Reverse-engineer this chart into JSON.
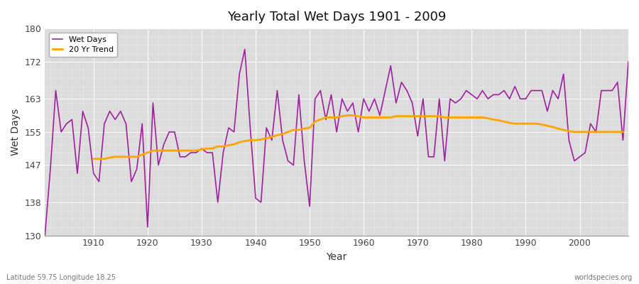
{
  "title": "Yearly Total Wet Days 1901 - 2009",
  "xlabel": "Year",
  "ylabel": "Wet Days",
  "bottom_left": "Latitude 59.75 Longitude 18.25",
  "bottom_right": "worldspecies.org",
  "years": [
    1901,
    1902,
    1903,
    1904,
    1905,
    1906,
    1907,
    1908,
    1909,
    1910,
    1911,
    1912,
    1913,
    1914,
    1915,
    1916,
    1917,
    1918,
    1919,
    1920,
    1921,
    1922,
    1923,
    1924,
    1925,
    1926,
    1927,
    1928,
    1929,
    1930,
    1931,
    1932,
    1933,
    1934,
    1935,
    1936,
    1937,
    1938,
    1939,
    1940,
    1941,
    1942,
    1943,
    1944,
    1945,
    1946,
    1947,
    1948,
    1949,
    1950,
    1951,
    1952,
    1953,
    1954,
    1955,
    1956,
    1957,
    1958,
    1959,
    1960,
    1961,
    1962,
    1963,
    1964,
    1965,
    1966,
    1967,
    1968,
    1969,
    1970,
    1971,
    1972,
    1973,
    1974,
    1975,
    1976,
    1977,
    1978,
    1979,
    1980,
    1981,
    1982,
    1983,
    1984,
    1985,
    1986,
    1987,
    1988,
    1989,
    1990,
    1991,
    1992,
    1993,
    1994,
    1995,
    1996,
    1997,
    1998,
    1999,
    2000,
    2001,
    2002,
    2003,
    2004,
    2005,
    2006,
    2007,
    2008,
    2009
  ],
  "wet_days": [
    130,
    146,
    165,
    155,
    157,
    158,
    145,
    160,
    156,
    145,
    143,
    157,
    160,
    158,
    160,
    157,
    143,
    146,
    157,
    132,
    162,
    147,
    152,
    155,
    155,
    149,
    149,
    150,
    150,
    151,
    150,
    150,
    138,
    150,
    156,
    155,
    169,
    175,
    156,
    139,
    138,
    156,
    153,
    165,
    153,
    148,
    147,
    164,
    148,
    137,
    163,
    165,
    158,
    164,
    155,
    163,
    160,
    162,
    155,
    163,
    160,
    163,
    159,
    165,
    171,
    162,
    167,
    165,
    162,
    154,
    163,
    149,
    149,
    163,
    148,
    163,
    162,
    163,
    165,
    164,
    163,
    165,
    163,
    164,
    164,
    165,
    163,
    166,
    163,
    163,
    165,
    165,
    165,
    160,
    165,
    163,
    169,
    153,
    148,
    149,
    150,
    157,
    155,
    165,
    165,
    165,
    167,
    153,
    172
  ],
  "trend_years": [
    1901,
    1902,
    1903,
    1904,
    1905,
    1906,
    1907,
    1908,
    1909,
    1910,
    1911,
    1912,
    1913,
    1914,
    1915,
    1916,
    1917,
    1918,
    1919,
    1920,
    1921,
    1922,
    1923,
    1924,
    1925,
    1926,
    1927,
    1928,
    1929,
    1930,
    1931,
    1932,
    1933,
    1934,
    1935,
    1936,
    1937,
    1938,
    1939,
    1940,
    1941,
    1942,
    1943,
    1944,
    1945,
    1946,
    1947,
    1948,
    1949,
    1950,
    1951,
    1952,
    1953,
    1954,
    1955,
    1956,
    1957,
    1958,
    1959,
    1960,
    1961,
    1962,
    1963,
    1964,
    1965,
    1966,
    1967,
    1968,
    1969,
    1970,
    1971,
    1972,
    1973,
    1974,
    1975,
    1976,
    1977,
    1978,
    1979,
    1980,
    1981,
    1982,
    1983,
    1984,
    1985,
    1986,
    1987,
    1988,
    1989,
    1990,
    1991,
    1992,
    1993,
    1994,
    1995,
    1996,
    1997,
    1998,
    1999,
    2000,
    2001,
    2002,
    2003,
    2004,
    2005,
    2006,
    2007,
    2008,
    2009
  ],
  "trend_values": [
    null,
    null,
    null,
    null,
    null,
    null,
    null,
    null,
    null,
    148.5,
    148.5,
    148.5,
    148.8,
    149.0,
    149.0,
    149.0,
    149.0,
    149.0,
    149.5,
    150.0,
    150.5,
    150.5,
    150.5,
    150.5,
    150.5,
    150.5,
    150.5,
    150.5,
    150.5,
    150.8,
    151.0,
    151.0,
    151.5,
    151.5,
    151.8,
    152.0,
    152.5,
    152.8,
    153.0,
    153.0,
    153.2,
    153.5,
    153.8,
    154.2,
    154.5,
    155.0,
    155.5,
    155.5,
    155.8,
    156.0,
    157.5,
    158.0,
    158.5,
    158.5,
    158.5,
    158.8,
    159.0,
    159.0,
    158.8,
    158.5,
    158.5,
    158.5,
    158.5,
    158.5,
    158.5,
    158.8,
    158.8,
    158.8,
    158.8,
    158.8,
    158.8,
    158.8,
    158.8,
    158.8,
    158.5,
    158.5,
    158.5,
    158.5,
    158.5,
    158.5,
    158.5,
    158.5,
    158.3,
    158.0,
    157.8,
    157.5,
    157.2,
    157.0,
    157.0,
    157.0,
    157.0,
    157.0,
    156.8,
    156.5,
    156.2,
    155.8,
    155.5,
    155.2,
    155.0,
    155.0,
    155.0,
    155.0,
    155.0,
    155.0,
    155.0,
    155.0,
    155.0,
    155.0
  ],
  "wet_days_color": "#a020a0",
  "trend_color": "#FFA500",
  "background_color": "#DCDCDC",
  "grid_color_minor": "#C8C8C8",
  "grid_color_major": "#B8B8B8",
  "ylim": [
    130,
    180
  ],
  "yticks": [
    130,
    138,
    147,
    155,
    163,
    172,
    180
  ],
  "xlim": [
    1901,
    2009
  ],
  "figsize": [
    9.0,
    4.0
  ],
  "dpi": 100
}
